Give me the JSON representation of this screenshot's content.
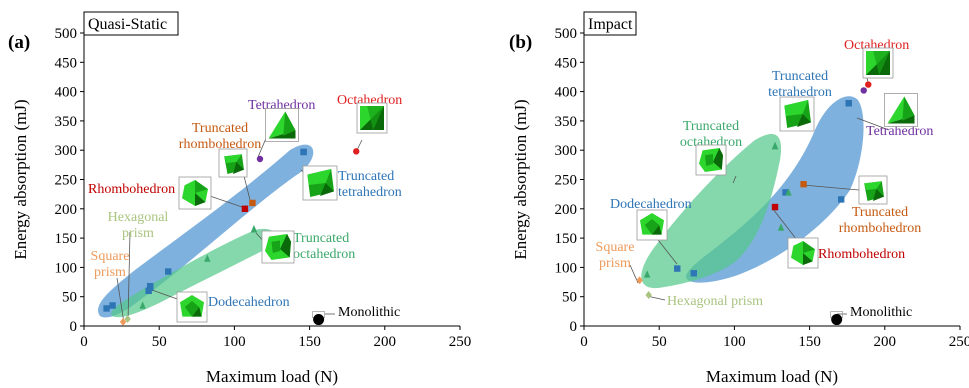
{
  "chart_data": [
    {
      "panel_label": "(a)",
      "title": "Quasi-Static",
      "type": "scatter",
      "xlabel": "Maximum load (N)",
      "ylabel": "Energy absorption (mJ)",
      "xlim": [
        0,
        250
      ],
      "ylim": [
        0,
        500
      ],
      "xticks": [
        "0",
        "50",
        "100",
        "150",
        "200",
        "250"
      ],
      "yticks": [
        "0",
        "50",
        "100",
        "150",
        "200",
        "250",
        "300",
        "350",
        "400",
        "450",
        "500"
      ],
      "grid": false,
      "regions": [
        {
          "name": "blue",
          "color": "#5b9bd5"
        },
        {
          "name": "green",
          "color": "#55c98a"
        }
      ],
      "points": [
        {
          "label": "Octahedron",
          "x": 181,
          "y": 298,
          "color": "#e02020",
          "marker": "circle",
          "icon": "octahedron-icon"
        },
        {
          "label": "Tetrahedron",
          "x": 117,
          "y": 285,
          "color": "#7030a0",
          "marker": "circle",
          "icon": "tetrahedron-icon"
        },
        {
          "label": "Truncated\nrhombohedron",
          "x": 112,
          "y": 210,
          "color": "#c55a11",
          "marker": "square",
          "icon": "truncated-rhombohedron-icon"
        },
        {
          "label": "Rhombohedron",
          "x": 107,
          "y": 200,
          "color": "#c00000",
          "marker": "square",
          "icon": "rhombohedron-icon"
        },
        {
          "label": "Truncated\ntetrahedron",
          "x": 146,
          "y": 297,
          "color": "#2e75b6",
          "marker": "square",
          "icon": "truncated-tetrahedron-icon"
        },
        {
          "label": "Truncated\noctahedron",
          "x": 113,
          "y": 165,
          "color": "#3aa86b",
          "marker": "triangle",
          "icon": "truncated-octahedron-icon"
        },
        {
          "label": "Dodecahedron",
          "x": 44,
          "y": 65,
          "color": "#2e75b6",
          "marker": "square",
          "icon": "dodecahedron-icon"
        },
        {
          "label": "Hexagonal\nprism",
          "x": 29,
          "y": 12,
          "color": "#a9c47f",
          "marker": "diamond",
          "icon": ""
        },
        {
          "label": "Square\nprism",
          "x": 26,
          "y": 7,
          "color": "#ed9a5a",
          "marker": "diamond",
          "icon": ""
        },
        {
          "label": "Monolithic",
          "x": 156,
          "y": 11,
          "color": "#000000",
          "marker": "circle",
          "icon": ""
        }
      ],
      "blue_points": [
        [
          15,
          30
        ],
        [
          19,
          35
        ],
        [
          43,
          60
        ],
        [
          44,
          68
        ],
        [
          56,
          93
        ],
        [
          146,
          297
        ]
      ],
      "green_points": [
        [
          39,
          35
        ],
        [
          82,
          115
        ],
        [
          113,
          165
        ]
      ]
    },
    {
      "panel_label": "(b)",
      "title": "Impact",
      "type": "scatter",
      "xlabel": "Maximum load (N)",
      "ylabel": "Energy absorption (mJ)",
      "xlim": [
        0,
        250
      ],
      "ylim": [
        0,
        500
      ],
      "xticks": [
        "0",
        "50",
        "100",
        "150",
        "200",
        "250"
      ],
      "yticks": [
        "0",
        "50",
        "100",
        "150",
        "200",
        "250",
        "300",
        "350",
        "400",
        "450",
        "500"
      ],
      "grid": false,
      "regions": [
        {
          "name": "blue",
          "color": "#5b9bd5"
        },
        {
          "name": "green",
          "color": "#55c98a"
        }
      ],
      "points": [
        {
          "label": "Octahedron",
          "x": 189,
          "y": 412,
          "color": "#e02020",
          "marker": "circle",
          "icon": "octahedron-icon"
        },
        {
          "label": "Truncated\ntetrahedron",
          "x": 176,
          "y": 380,
          "color": "#2e75b6",
          "marker": "square",
          "icon": "truncated-tetrahedron-icon"
        },
        {
          "label": "Tetrahedron",
          "x": 186,
          "y": 402,
          "color": "#7030a0",
          "marker": "circle",
          "icon": "tetrahedron-icon"
        },
        {
          "label": "Truncated\noctahedron",
          "x": 127,
          "y": 307,
          "color": "#3aa86b",
          "marker": "triangle",
          "icon": "truncated-octahedron-icon"
        },
        {
          "label": "Truncated\nrhombohedron",
          "x": 146,
          "y": 242,
          "color": "#c55a11",
          "marker": "square",
          "icon": "truncated-rhombohedron-icon"
        },
        {
          "label": "Rhombohedron",
          "x": 127,
          "y": 203,
          "color": "#c00000",
          "marker": "square",
          "icon": "rhombohedron-icon"
        },
        {
          "label": "Dodecahedron",
          "x": 62,
          "y": 98,
          "color": "#2e75b6",
          "marker": "square",
          "icon": "dodecahedron-icon"
        },
        {
          "label": "Square\nprism",
          "x": 37,
          "y": 78,
          "color": "#ed9a5a",
          "marker": "diamond",
          "icon": ""
        },
        {
          "label": "Hexagonal prism",
          "x": 43,
          "y": 53,
          "color": "#a9c47f",
          "marker": "diamond",
          "icon": ""
        },
        {
          "label": "Monolithic",
          "x": 168,
          "y": 11,
          "color": "#000000",
          "marker": "circle",
          "icon": ""
        }
      ],
      "blue_points": [
        [
          73,
          90
        ],
        [
          134,
          228
        ],
        [
          171,
          216
        ],
        [
          176,
          380
        ]
      ],
      "green_points": [
        [
          42,
          88
        ],
        [
          131,
          168
        ],
        [
          136,
          228
        ],
        [
          127,
          307
        ]
      ]
    }
  ]
}
